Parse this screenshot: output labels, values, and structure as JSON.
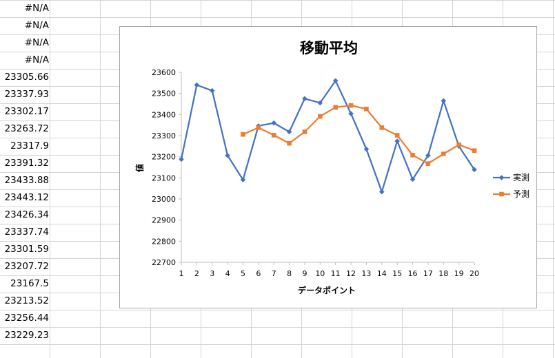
{
  "sheet": {
    "column_a_cells": [
      "#N/A",
      "#N/A",
      "#N/A",
      "#N/A",
      "23305.66",
      "23337.93",
      "23302.17",
      "23263.72",
      "23317.9",
      "23391.32",
      "23433.88",
      "23443.12",
      "23426.34",
      "23337.74",
      "23301.59",
      "23207.72",
      "23167.5",
      "23213.52",
      "23256.44",
      "23229.23"
    ]
  },
  "chart_data": {
    "type": "line",
    "title": "移動平均",
    "xlabel": "データポイント",
    "ylabel": "値",
    "categories": [
      "1",
      "2",
      "3",
      "4",
      "5",
      "6",
      "7",
      "8",
      "9",
      "10",
      "11",
      "12",
      "13",
      "14",
      "15",
      "16",
      "17",
      "18",
      "19",
      "20"
    ],
    "ylim": [
      22700,
      23600
    ],
    "yticks": [
      "22700",
      "22800",
      "22900",
      "23000",
      "23100",
      "23200",
      "23300",
      "23400",
      "23500",
      "23600"
    ],
    "legend_position": "right",
    "grid": false,
    "series": [
      {
        "name": "実測",
        "color": "#4472C4",
        "marker": "diamond",
        "values": [
          23188,
          23540,
          23513,
          23206,
          23091,
          23346,
          23360,
          23318,
          23475,
          23455,
          23560,
          23404,
          23236,
          23034,
          23274,
          23093,
          23206,
          23465,
          23250,
          23139
        ]
      },
      {
        "name": "予測",
        "color": "#ED7D31",
        "marker": "square",
        "values": [
          null,
          null,
          null,
          null,
          23305.66,
          23337.93,
          23302.17,
          23263.72,
          23317.9,
          23391.32,
          23433.88,
          23443.12,
          23426.34,
          23337.74,
          23301.59,
          23207.72,
          23167.5,
          23213.52,
          23256.44,
          23229.23
        ]
      }
    ]
  }
}
